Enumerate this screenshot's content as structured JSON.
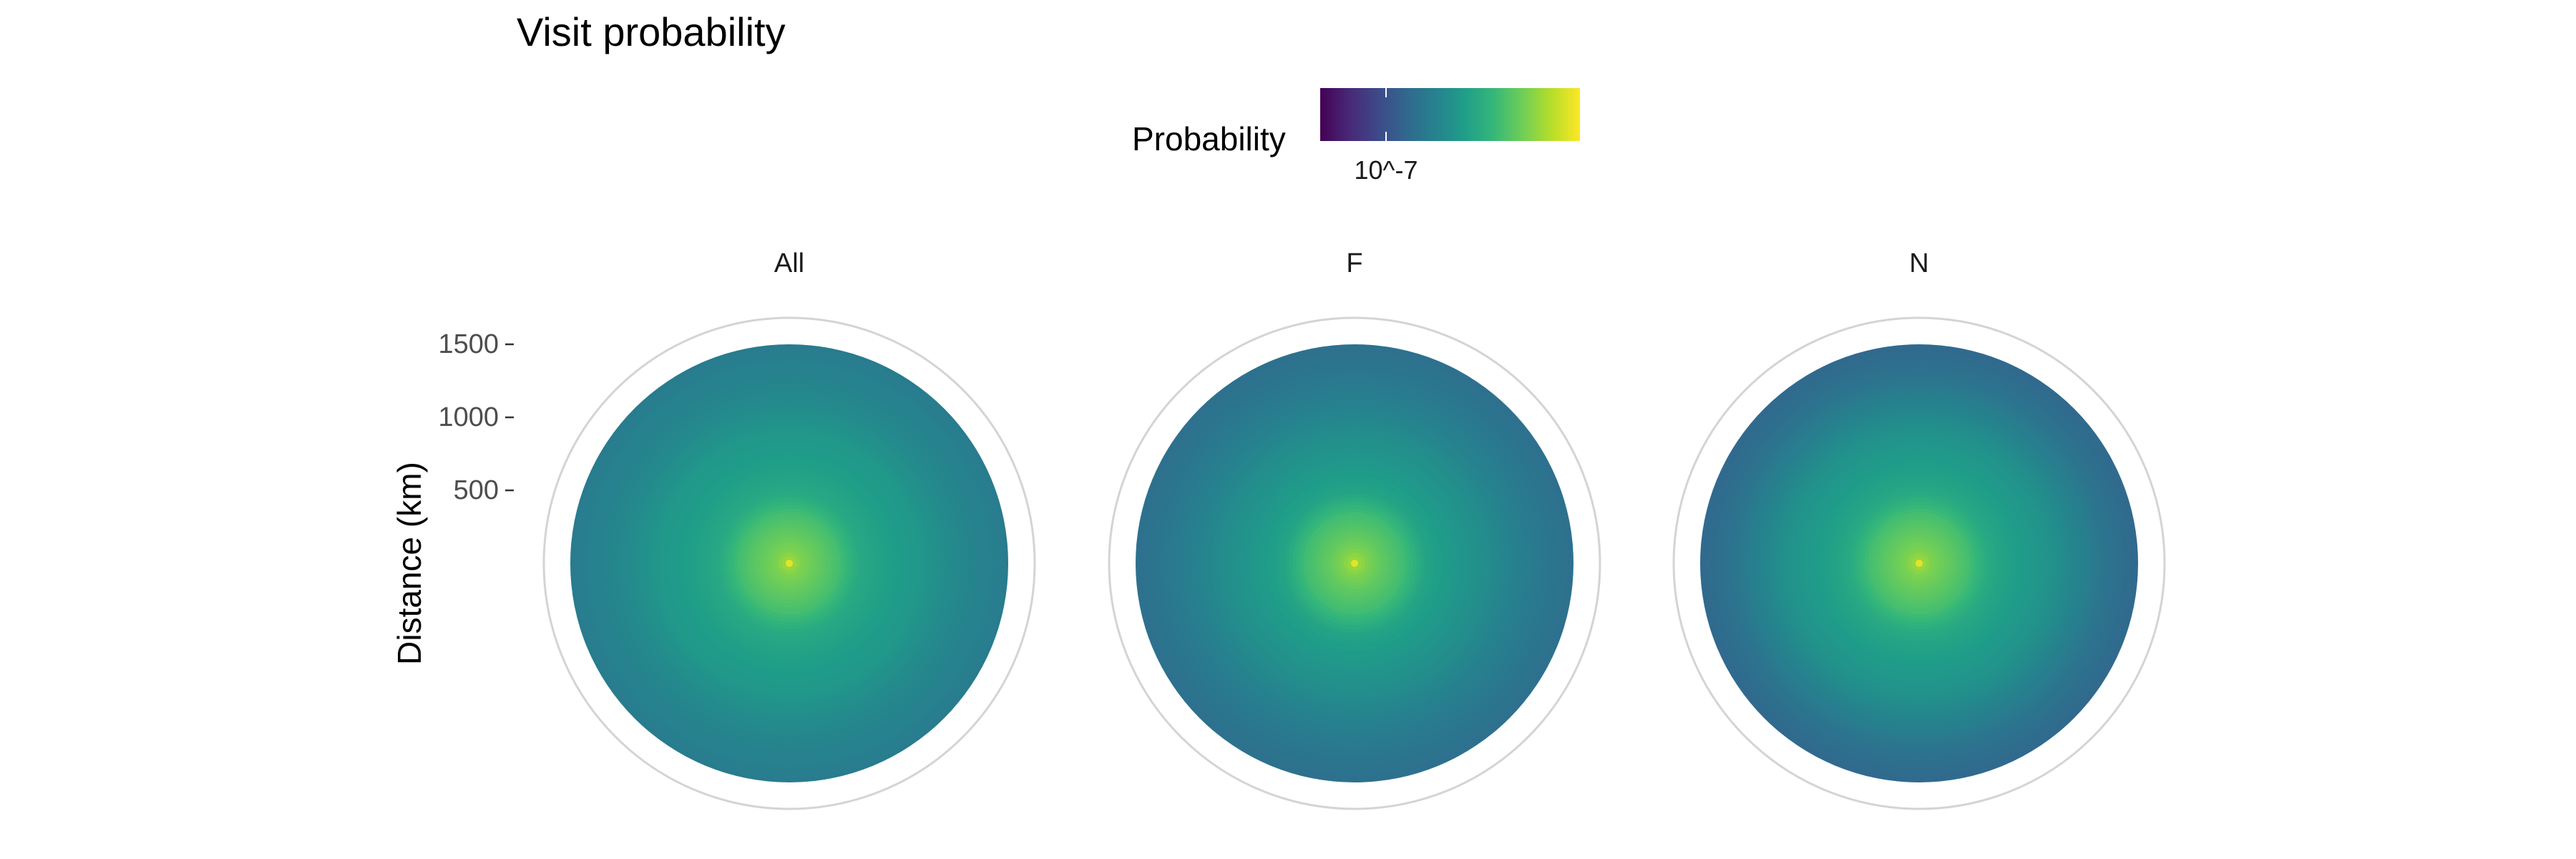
{
  "chart_data": {
    "type": "heatmap",
    "coordinate_system": "polar",
    "title": "Visit probability",
    "ylabel": "Distance (km)",
    "y_ticks": [
      500,
      1000,
      1500
    ],
    "y_tick_labels": [
      "500",
      "1000",
      "1500"
    ],
    "ylim": [
      0,
      1500
    ],
    "legend": {
      "title": "Probability",
      "position": "top",
      "colormap": "viridis",
      "tick_labels": [
        "10^-7"
      ],
      "colors": [
        "#440154",
        "#482878",
        "#3e4989",
        "#31688e",
        "#26828e",
        "#1f9e89",
        "#35b779",
        "#6ece58",
        "#b5de2b",
        "#fde725"
      ]
    },
    "panels": [
      {
        "label": "All",
        "rings": [
          {
            "distance": 0,
            "level": 0.88
          },
          {
            "distance": 100,
            "level": 0.8
          },
          {
            "distance": 200,
            "level": 0.76
          },
          {
            "distance": 350,
            "level": 0.7
          },
          {
            "distance": 500,
            "level": 0.6
          },
          {
            "distance": 700,
            "level": 0.56
          },
          {
            "distance": 900,
            "level": 0.53
          },
          {
            "distance": 1100,
            "level": 0.48
          },
          {
            "distance": 1300,
            "level": 0.45
          },
          {
            "distance": 1500,
            "level": 0.42
          }
        ]
      },
      {
        "label": "F",
        "rings": [
          {
            "distance": 0,
            "level": 0.88
          },
          {
            "distance": 100,
            "level": 0.8
          },
          {
            "distance": 200,
            "level": 0.75
          },
          {
            "distance": 350,
            "level": 0.69
          },
          {
            "distance": 500,
            "level": 0.58
          },
          {
            "distance": 700,
            "level": 0.53
          },
          {
            "distance": 900,
            "level": 0.49
          },
          {
            "distance": 1100,
            "level": 0.44
          },
          {
            "distance": 1300,
            "level": 0.4
          },
          {
            "distance": 1500,
            "level": 0.37
          }
        ]
      },
      {
        "label": "N",
        "rings": [
          {
            "distance": 0,
            "level": 0.88
          },
          {
            "distance": 100,
            "level": 0.8
          },
          {
            "distance": 200,
            "level": 0.76
          },
          {
            "distance": 350,
            "level": 0.7
          },
          {
            "distance": 500,
            "level": 0.6
          },
          {
            "distance": 700,
            "level": 0.55
          },
          {
            "distance": 900,
            "level": 0.51
          },
          {
            "distance": 1100,
            "level": 0.45
          },
          {
            "distance": 1300,
            "level": 0.38
          },
          {
            "distance": 1500,
            "level": 0.34
          }
        ]
      }
    ],
    "grid": true
  }
}
